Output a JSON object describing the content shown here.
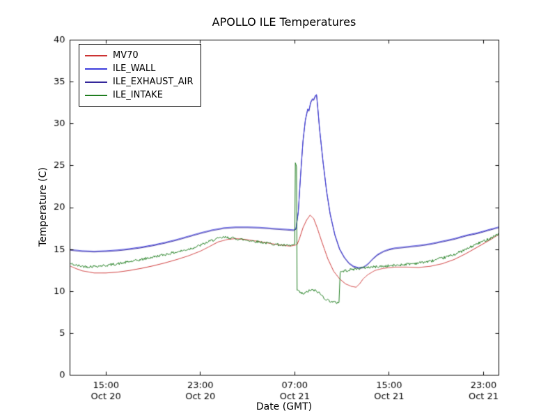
{
  "chart_data": {
    "type": "line",
    "title": "APOLLO ILE Temperatures",
    "xlabel": "Date (GMT)",
    "ylabel": "Temperature (C)",
    "xlim": [
      11.95,
      48.3
    ],
    "ylim": [
      0,
      40
    ],
    "yticks": [
      0,
      5,
      10,
      15,
      20,
      25,
      30,
      35,
      40
    ],
    "xticks": [
      {
        "x": 15,
        "time": "15:00",
        "date": "Oct 20"
      },
      {
        "x": 23,
        "time": "23:00",
        "date": "Oct 20"
      },
      {
        "x": 31,
        "time": "07:00",
        "date": "Oct 21"
      },
      {
        "x": 39,
        "time": "15:00",
        "date": "Oct 21"
      },
      {
        "x": 47,
        "time": "23:00",
        "date": "Oct 21"
      }
    ],
    "x_unit": "hours since Oct 20 00:00 GMT",
    "grid": false,
    "legend_position": "upper left",
    "series": [
      {
        "name": "MV70",
        "color": "#cc3333",
        "z": 2,
        "points": [
          [
            12,
            13.0
          ],
          [
            12.5,
            12.7
          ],
          [
            13,
            12.45
          ],
          [
            14,
            12.2
          ],
          [
            15,
            12.2
          ],
          [
            16,
            12.3
          ],
          [
            17,
            12.5
          ],
          [
            18,
            12.75
          ],
          [
            19,
            13.05
          ],
          [
            20,
            13.4
          ],
          [
            21,
            13.8
          ],
          [
            22,
            14.25
          ],
          [
            23,
            14.8
          ],
          [
            23.7,
            15.3
          ],
          [
            24.5,
            15.9
          ],
          [
            25.3,
            16.2
          ],
          [
            26,
            16.3
          ],
          [
            26.8,
            16.2
          ],
          [
            28,
            15.95
          ],
          [
            29,
            15.7
          ],
          [
            30,
            15.5
          ],
          [
            30.6,
            15.4
          ],
          [
            31.0,
            15.5
          ],
          [
            31.2,
            15.6
          ],
          [
            31.4,
            16.3
          ],
          [
            31.7,
            17.6
          ],
          [
            32.0,
            18.5
          ],
          [
            32.3,
            19.1
          ],
          [
            32.6,
            18.7
          ],
          [
            32.9,
            17.6
          ],
          [
            33.3,
            15.9
          ],
          [
            33.8,
            13.9
          ],
          [
            34.3,
            12.4
          ],
          [
            34.8,
            11.5
          ],
          [
            35.3,
            10.9
          ],
          [
            35.8,
            10.6
          ],
          [
            36.2,
            10.5
          ],
          [
            36.5,
            10.9
          ],
          [
            36.8,
            11.5
          ],
          [
            37.2,
            12.0
          ],
          [
            37.8,
            12.5
          ],
          [
            38.5,
            12.75
          ],
          [
            39.5,
            12.9
          ],
          [
            40.5,
            12.9
          ],
          [
            41.5,
            12.85
          ],
          [
            42.5,
            13.0
          ],
          [
            43.5,
            13.3
          ],
          [
            44.5,
            13.8
          ],
          [
            45.5,
            14.5
          ],
          [
            46.5,
            15.3
          ],
          [
            47.5,
            16.1
          ],
          [
            48.3,
            16.8
          ]
        ]
      },
      {
        "name": "ILE_WALL",
        "color": "#3c3cdc",
        "z": 1,
        "points": [
          [
            12,
            15.0
          ],
          [
            13,
            14.85
          ],
          [
            14,
            14.8
          ],
          [
            15,
            14.85
          ],
          [
            16,
            14.95
          ],
          [
            17,
            15.1
          ],
          [
            18,
            15.3
          ],
          [
            19,
            15.55
          ],
          [
            20,
            15.85
          ],
          [
            21,
            16.2
          ],
          [
            22,
            16.6
          ],
          [
            23,
            17.0
          ],
          [
            24,
            17.35
          ],
          [
            25,
            17.6
          ],
          [
            26,
            17.7
          ],
          [
            27,
            17.7
          ],
          [
            28,
            17.65
          ],
          [
            29,
            17.55
          ],
          [
            30,
            17.45
          ],
          [
            30.5,
            17.4
          ],
          [
            30.9,
            17.35
          ],
          [
            31.1,
            17.5
          ],
          [
            31.3,
            19.5
          ],
          [
            31.5,
            24.0
          ],
          [
            31.7,
            28.0
          ],
          [
            31.9,
            30.5
          ],
          [
            32.1,
            31.8
          ],
          [
            32.2,
            31.6
          ],
          [
            32.35,
            32.6
          ],
          [
            32.5,
            33.0
          ],
          [
            32.6,
            32.9
          ],
          [
            32.75,
            33.4
          ],
          [
            32.85,
            33.5
          ],
          [
            32.95,
            32.0
          ],
          [
            33.1,
            29.5
          ],
          [
            33.4,
            25.5
          ],
          [
            33.7,
            22.0
          ],
          [
            34.0,
            19.3
          ],
          [
            34.4,
            16.8
          ],
          [
            34.8,
            15.1
          ],
          [
            35.2,
            14.1
          ],
          [
            35.6,
            13.4
          ],
          [
            36.0,
            13.0
          ],
          [
            36.4,
            12.85
          ],
          [
            36.8,
            12.9
          ],
          [
            37.2,
            13.3
          ],
          [
            37.6,
            13.9
          ],
          [
            38.0,
            14.4
          ],
          [
            38.5,
            14.8
          ],
          [
            39.0,
            15.05
          ],
          [
            39.5,
            15.2
          ],
          [
            40.5,
            15.35
          ],
          [
            41.5,
            15.5
          ],
          [
            42.5,
            15.7
          ],
          [
            43.5,
            16.0
          ],
          [
            44.5,
            16.3
          ],
          [
            45.5,
            16.7
          ],
          [
            46.5,
            17.0
          ],
          [
            47.5,
            17.4
          ],
          [
            48.3,
            17.7
          ]
        ]
      },
      {
        "name": "ILE_EXHAUST_AIR",
        "color": "#35289b",
        "z": 0,
        "points": [
          [
            12,
            14.9
          ],
          [
            13,
            14.75
          ],
          [
            14,
            14.7
          ],
          [
            15,
            14.75
          ],
          [
            16,
            14.85
          ],
          [
            17,
            15.0
          ],
          [
            18,
            15.2
          ],
          [
            19,
            15.45
          ],
          [
            20,
            15.75
          ],
          [
            21,
            16.1
          ],
          [
            22,
            16.5
          ],
          [
            23,
            16.9
          ],
          [
            24,
            17.25
          ],
          [
            25,
            17.5
          ],
          [
            26,
            17.6
          ],
          [
            27,
            17.6
          ],
          [
            28,
            17.55
          ],
          [
            29,
            17.45
          ],
          [
            30,
            17.35
          ],
          [
            30.5,
            17.3
          ],
          [
            30.9,
            17.25
          ],
          [
            31.1,
            17.4
          ],
          [
            31.3,
            19.4
          ],
          [
            31.5,
            23.9
          ],
          [
            31.7,
            27.9
          ],
          [
            31.9,
            30.4
          ],
          [
            32.1,
            31.7
          ],
          [
            32.2,
            31.5
          ],
          [
            32.35,
            32.5
          ],
          [
            32.5,
            32.9
          ],
          [
            32.6,
            32.8
          ],
          [
            32.75,
            33.3
          ],
          [
            32.85,
            33.4
          ],
          [
            32.95,
            31.9
          ],
          [
            33.1,
            29.4
          ],
          [
            33.4,
            25.4
          ],
          [
            33.7,
            21.9
          ],
          [
            34.0,
            19.2
          ],
          [
            34.4,
            16.7
          ],
          [
            34.8,
            15.0
          ],
          [
            35.2,
            14.0
          ],
          [
            35.6,
            13.3
          ],
          [
            36.0,
            12.9
          ],
          [
            36.4,
            12.75
          ],
          [
            36.8,
            12.8
          ],
          [
            37.2,
            13.2
          ],
          [
            37.6,
            13.8
          ],
          [
            38.0,
            14.3
          ],
          [
            38.5,
            14.7
          ],
          [
            39.0,
            14.95
          ],
          [
            39.5,
            15.1
          ],
          [
            40.5,
            15.25
          ],
          [
            41.5,
            15.4
          ],
          [
            42.5,
            15.6
          ],
          [
            43.5,
            15.9
          ],
          [
            44.5,
            16.2
          ],
          [
            45.5,
            16.6
          ],
          [
            46.5,
            16.9
          ],
          [
            47.5,
            17.3
          ],
          [
            48.3,
            17.6
          ]
        ]
      },
      {
        "name": "ILE_INTAKE",
        "color": "#1f7d1f",
        "z": 3,
        "noise": 0.16,
        "seed": 42,
        "points": [
          [
            12,
            13.3
          ],
          [
            12.5,
            13.1
          ],
          [
            13,
            13.0
          ],
          [
            13.5,
            12.95
          ],
          [
            14,
            13.0
          ],
          [
            14.5,
            13.05
          ],
          [
            15,
            13.1
          ],
          [
            15.5,
            13.2
          ],
          [
            16,
            13.3
          ],
          [
            16.5,
            13.4
          ],
          [
            17,
            13.55
          ],
          [
            17.5,
            13.65
          ],
          [
            18,
            13.8
          ],
          [
            18.5,
            13.95
          ],
          [
            19,
            14.1
          ],
          [
            19.5,
            14.25
          ],
          [
            20,
            14.4
          ],
          [
            20.5,
            14.55
          ],
          [
            21,
            14.7
          ],
          [
            21.5,
            14.85
          ],
          [
            22,
            15.05
          ],
          [
            22.5,
            15.25
          ],
          [
            23,
            15.5
          ],
          [
            23.5,
            15.8
          ],
          [
            24,
            16.1
          ],
          [
            24.5,
            16.3
          ],
          [
            25,
            16.45
          ],
          [
            25.5,
            16.4
          ],
          [
            26,
            16.3
          ],
          [
            26.5,
            16.2
          ],
          [
            27,
            16.1
          ],
          [
            27.5,
            16.0
          ],
          [
            28,
            15.9
          ],
          [
            28.5,
            15.8
          ],
          [
            29,
            15.7
          ],
          [
            29.5,
            15.6
          ],
          [
            30,
            15.5
          ],
          [
            30.5,
            15.45
          ],
          [
            30.8,
            15.5
          ],
          [
            31.0,
            15.6
          ],
          [
            31.05,
            25.2
          ],
          [
            31.15,
            24.8
          ],
          [
            31.2,
            10.2
          ],
          [
            31.5,
            9.8
          ],
          [
            31.8,
            9.7
          ],
          [
            32.1,
            10.0
          ],
          [
            32.4,
            10.15
          ],
          [
            32.7,
            10.1
          ],
          [
            33.0,
            9.9
          ],
          [
            33.3,
            9.5
          ],
          [
            33.6,
            9.1
          ],
          [
            33.9,
            8.9
          ],
          [
            34.2,
            8.75
          ],
          [
            34.5,
            8.65
          ],
          [
            34.75,
            8.7
          ],
          [
            34.85,
            12.3
          ],
          [
            35.2,
            12.45
          ],
          [
            35.6,
            12.55
          ],
          [
            36.0,
            12.65
          ],
          [
            36.5,
            12.75
          ],
          [
            37.0,
            12.85
          ],
          [
            37.5,
            12.9
          ],
          [
            38.5,
            13.0
          ],
          [
            39.5,
            13.1
          ],
          [
            40.5,
            13.25
          ],
          [
            41.5,
            13.4
          ],
          [
            42.5,
            13.6
          ],
          [
            43.5,
            13.95
          ],
          [
            44.5,
            14.4
          ],
          [
            45.5,
            15.0
          ],
          [
            46.5,
            15.7
          ],
          [
            47.5,
            16.3
          ],
          [
            48.3,
            16.9
          ]
        ]
      }
    ]
  }
}
